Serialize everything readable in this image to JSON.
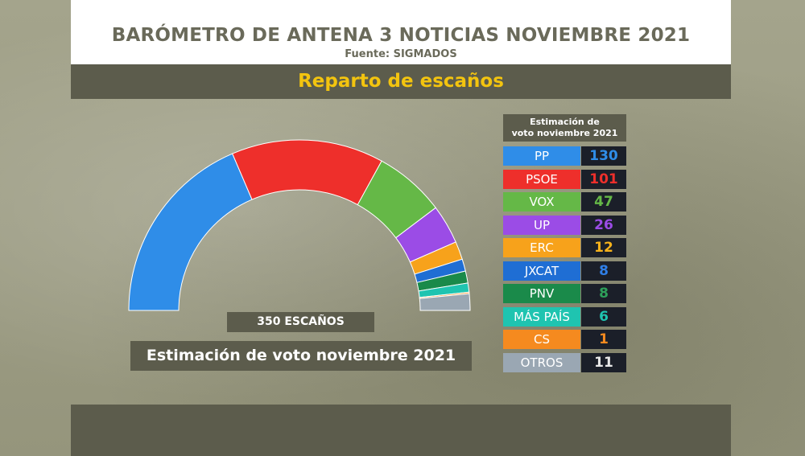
{
  "header": {
    "title": "BARÓMETRO DE ANTENA 3 NOTICIAS NOVIEMBRE 2021",
    "source": "Fuente: SIGMADOS",
    "subtitle": "Reparto de escaños"
  },
  "chart_labels": {
    "total_seats": "350 ESCAÑOS",
    "estimation": "Estimación de voto noviembre 2021",
    "legend_header_line1": "Estimación de",
    "legend_header_line2": "voto noviembre 2021"
  },
  "chart_data": {
    "type": "pie",
    "style": "hemicycle",
    "total": 350,
    "series": [
      {
        "name": "PP",
        "value": 130,
        "color": "#2f8de8",
        "value_color": "#2f8de8"
      },
      {
        "name": "PSOE",
        "value": 101,
        "color": "#ee2f2b",
        "value_color": "#ee2f2b"
      },
      {
        "name": "VOX",
        "value": 47,
        "color": "#65b847",
        "value_color": "#65b847"
      },
      {
        "name": "UP",
        "value": 26,
        "color": "#9b4ce6",
        "value_color": "#9b4ce6"
      },
      {
        "name": "ERC",
        "value": 12,
        "color": "#f7a21b",
        "value_color": "#f7b21b"
      },
      {
        "name": "JXCAT",
        "value": 8,
        "color": "#1f6ed4",
        "value_color": "#2f7fe8"
      },
      {
        "name": "PNV",
        "value": 8,
        "color": "#1a8a4a",
        "value_color": "#2ea05a"
      },
      {
        "name": "MÁS PAÍS",
        "value": 6,
        "color": "#1fc4b0",
        "value_color": "#1fc4b0"
      },
      {
        "name": "CS",
        "value": 1,
        "color": "#f58a1f",
        "value_color": "#f58a1f"
      },
      {
        "name": "OTROS",
        "value": 11,
        "color": "#9aa7b3",
        "value_color": "#e8e8e8"
      }
    ]
  }
}
